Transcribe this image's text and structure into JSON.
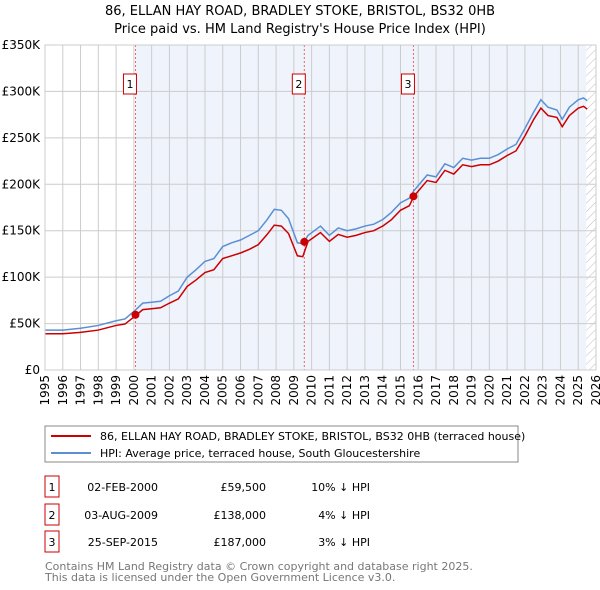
{
  "title": "86, ELLAN HAY ROAD, BRADLEY STOKE, BRISTOL, BS32 0HB",
  "subtitle": "Price paid vs. HM Land Registry's House Price Index (HPI)",
  "colors": {
    "property": "#cc0000",
    "hpi": "#5b8fd4",
    "shade": "#eef3fc",
    "grid": "#cccccc",
    "marker_border": "#cc0000"
  },
  "chart_data": {
    "type": "line",
    "xlim": [
      1995,
      2026
    ],
    "ylim": [
      0,
      350000
    ],
    "yticks": [
      {
        "v": 0,
        "label": "£0"
      },
      {
        "v": 50000,
        "label": "£50K"
      },
      {
        "v": 100000,
        "label": "£100K"
      },
      {
        "v": 150000,
        "label": "£150K"
      },
      {
        "v": 200000,
        "label": "£200K"
      },
      {
        "v": 250000,
        "label": "£250K"
      },
      {
        "v": 300000,
        "label": "£300K"
      },
      {
        "v": 350000,
        "label": "£350K"
      }
    ],
    "xticks": [
      "1995",
      "1996",
      "1997",
      "1998",
      "1999",
      "2000",
      "2001",
      "2002",
      "2003",
      "2004",
      "2005",
      "2006",
      "2007",
      "2008",
      "2009",
      "2010",
      "2011",
      "2012",
      "2013",
      "2014",
      "2015",
      "2016",
      "2017",
      "2018",
      "2019",
      "2020",
      "2021",
      "2022",
      "2023",
      "2024",
      "2025",
      "2026"
    ],
    "grid": true,
    "shaded_from": 2000.09,
    "hatched_from": 2025.45,
    "x": [
      1995,
      1996,
      1997,
      1998,
      1999,
      1999.5,
      2000,
      2000.5,
      2001,
      2001.5,
      2002,
      2002.5,
      2003,
      2003.5,
      2004,
      2004.5,
      2005,
      2005.5,
      2006,
      2006.5,
      2007,
      2007.5,
      2007.9,
      2008.3,
      2008.7,
      2009.2,
      2009.5,
      2009.8,
      2010.5,
      2011,
      2011.5,
      2012,
      2012.5,
      2013,
      2013.5,
      2014,
      2014.5,
      2015,
      2015.5,
      2015.75,
      2016.5,
      2017,
      2017.5,
      2018,
      2018.5,
      2019,
      2019.5,
      2020,
      2020.5,
      2021,
      2021.5,
      2022,
      2022.5,
      2022.9,
      2023.3,
      2023.8,
      2024.1,
      2024.5,
      2025,
      2025.3,
      2025.5
    ],
    "series": [
      {
        "name": "86, ELLAN HAY ROAD, BRADLEY STOKE, BRISTOL, BS32 0HB (terraced house)",
        "color": "#cc0000",
        "values": [
          39000,
          39000,
          40500,
          43000,
          48000,
          49500,
          57000,
          65000,
          66000,
          67000,
          72000,
          76500,
          90000,
          97000,
          105000,
          108000,
          120000,
          123000,
          126000,
          130000,
          135000,
          146000,
          156000,
          155000,
          147000,
          123000,
          122000,
          138500,
          148000,
          138500,
          146000,
          143000,
          145000,
          148000,
          150000,
          155000,
          162000,
          172000,
          177000,
          187000,
          204000,
          202000,
          215000,
          211000,
          221000,
          219000,
          221000,
          221000,
          225000,
          231000,
          236000,
          252000,
          270000,
          282000,
          274000,
          272000,
          262000,
          274000,
          282000,
          284000,
          281000
        ]
      },
      {
        "name": "HPI: Average price, terraced house, South Gloucestershire",
        "color": "#5b8fd4",
        "values": [
          43000,
          43000,
          45000,
          48000,
          53000,
          55000,
          63000,
          72000,
          73000,
          74000,
          80000,
          85000,
          100000,
          108000,
          117000,
          120000,
          133000,
          137000,
          140000,
          145000,
          150000,
          162000,
          173000,
          172000,
          163000,
          137000,
          136000,
          145000,
          155000,
          145000,
          153000,
          150000,
          152000,
          155000,
          157000,
          162000,
          170000,
          180000,
          185000,
          193000,
          210000,
          208000,
          222000,
          218000,
          228000,
          226000,
          228000,
          228000,
          232000,
          238000,
          243000,
          260000,
          278000,
          291000,
          283000,
          280000,
          270000,
          283000,
          291000,
          293000,
          290000
        ]
      }
    ],
    "sales": [
      {
        "n": "1",
        "x": 2000.09,
        "price": 59500,
        "date": "02-FEB-2000",
        "price_label": "£59,500",
        "delta": "10% ↓ HPI"
      },
      {
        "n": "2",
        "x": 2009.59,
        "price": 138000,
        "date": "03-AUG-2009",
        "price_label": "£138,000",
        "delta": "4% ↓ HPI"
      },
      {
        "n": "3",
        "x": 2015.73,
        "price": 187000,
        "date": "25-SEP-2015",
        "price_label": "£187,000",
        "delta": "3% ↓ HPI"
      }
    ],
    "legend_position": "below"
  },
  "footer": [
    "Contains HM Land Registry data © Crown copyright and database right 2025.",
    "This data is licensed under the Open Government Licence v3.0."
  ]
}
